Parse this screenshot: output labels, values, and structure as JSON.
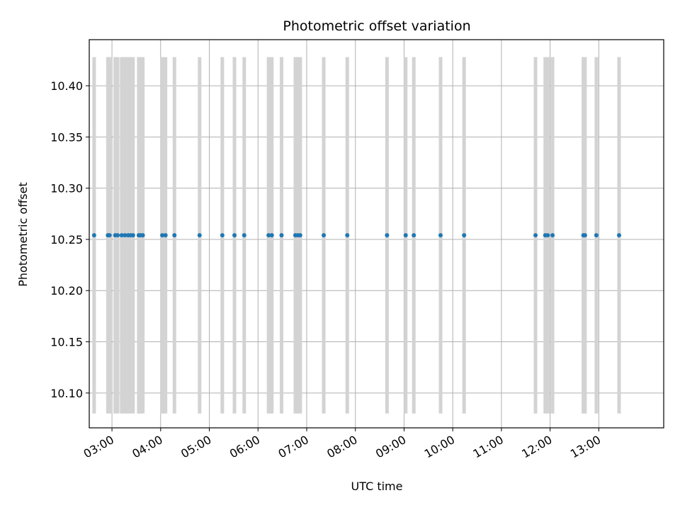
{
  "chart_data": {
    "type": "scatter",
    "title": "Photometric offset variation",
    "xlabel": "UTC time",
    "ylabel": "Photometric offset",
    "xlim": [
      "02:32",
      "14:20"
    ],
    "ylim": [
      10.066,
      10.445
    ],
    "x_ticks": [
      "03:00",
      "04:00",
      "05:00",
      "06:00",
      "07:00",
      "08:00",
      "09:00",
      "10:00",
      "11:00",
      "12:00",
      "13:00"
    ],
    "y_ticks": [
      "10.10",
      "10.15",
      "10.20",
      "10.25",
      "10.30",
      "10.35",
      "10.40"
    ],
    "grid": true,
    "point_color": "#1f77b4",
    "errorbar_color": "#d3d3d3",
    "series": [
      {
        "x": [
          "02:38",
          "02:55",
          "02:57",
          "03:04",
          "03:07",
          "03:12",
          "03:16",
          "03:20",
          "03:23",
          "03:26",
          "03:33",
          "03:35",
          "03:38",
          "04:02",
          "04:06",
          "04:17",
          "04:48",
          "05:16",
          "05:31",
          "05:43",
          "06:13",
          "06:17",
          "06:29",
          "06:46",
          "06:49",
          "06:52",
          "07:21",
          "07:50",
          "08:39",
          "09:02",
          "09:12",
          "09:45",
          "10:14",
          "11:42",
          "11:54",
          "11:57",
          "12:03",
          "12:41",
          "12:43",
          "12:57",
          "13:25"
        ],
        "y": [
          10.254,
          10.254,
          10.254,
          10.254,
          10.254,
          10.254,
          10.254,
          10.254,
          10.254,
          10.254,
          10.254,
          10.254,
          10.254,
          10.254,
          10.254,
          10.254,
          10.254,
          10.254,
          10.254,
          10.254,
          10.254,
          10.254,
          10.254,
          10.254,
          10.254,
          10.254,
          10.254,
          10.254,
          10.254,
          10.254,
          10.254,
          10.254,
          10.254,
          10.254,
          10.254,
          10.254,
          10.254,
          10.254,
          10.254,
          10.254,
          10.254
        ],
        "yerr": [
          0.174,
          0.174,
          0.174,
          0.174,
          0.174,
          0.174,
          0.174,
          0.174,
          0.174,
          0.174,
          0.174,
          0.174,
          0.174,
          0.174,
          0.174,
          0.174,
          0.174,
          0.174,
          0.174,
          0.174,
          0.174,
          0.174,
          0.174,
          0.174,
          0.174,
          0.174,
          0.174,
          0.174,
          0.174,
          0.174,
          0.174,
          0.174,
          0.174,
          0.174,
          0.174,
          0.174,
          0.174,
          0.174,
          0.174,
          0.174,
          0.174
        ]
      }
    ]
  }
}
